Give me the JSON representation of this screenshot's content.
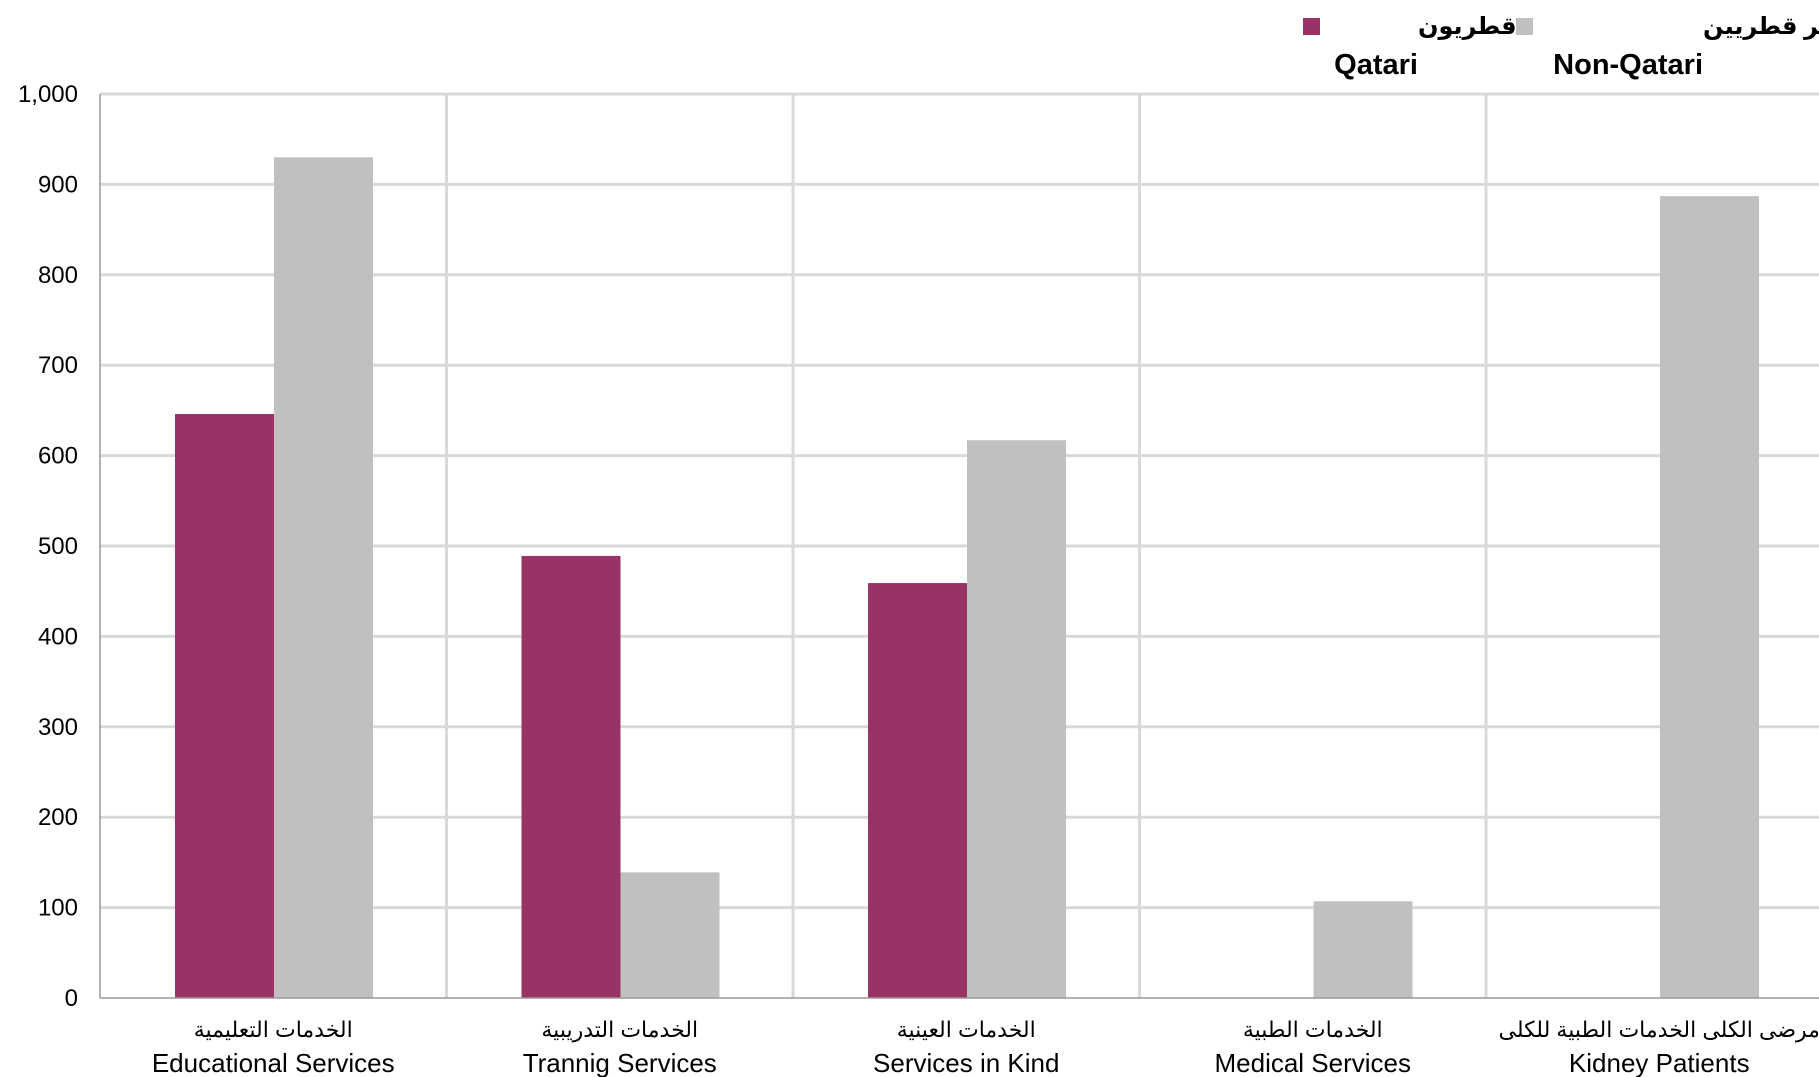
{
  "chart_data": {
    "type": "bar",
    "title": "",
    "xlabel": "",
    "ylabel": "",
    "ylim": [
      0,
      1000
    ],
    "yticks": [
      0,
      100,
      200,
      300,
      400,
      500,
      600,
      700,
      800,
      900,
      1000
    ],
    "ytick_labels": [
      "0",
      "100",
      "200",
      "300",
      "400",
      "500",
      "600",
      "700",
      "800",
      "900",
      "1,000"
    ],
    "grid": true,
    "legend_position": "top-right",
    "categories": [
      {
        "ar": "الخدمات التعليمية",
        "en": "Educational Services"
      },
      {
        "ar": "الخدمات التدريبية",
        "en": "Trannig Services"
      },
      {
        "ar": "الخدمات العينية",
        "en": "Services in Kind"
      },
      {
        "ar": "الخدمات الطبية",
        "en": "Medical Services"
      },
      {
        "ar": "مرضى الكلى الخدمات الطبية للكلى",
        "en": "Kidney Patients"
      }
    ],
    "series": [
      {
        "name": "Qatari",
        "name_ar": "قطريون",
        "color": "#993366",
        "values": [
          646,
          489,
          459,
          0,
          0
        ]
      },
      {
        "name": "Non-Qatari",
        "name_ar": "غير قطريين",
        "color": "#C0C0C0",
        "values": [
          930,
          139,
          617,
          107,
          887
        ]
      }
    ]
  }
}
